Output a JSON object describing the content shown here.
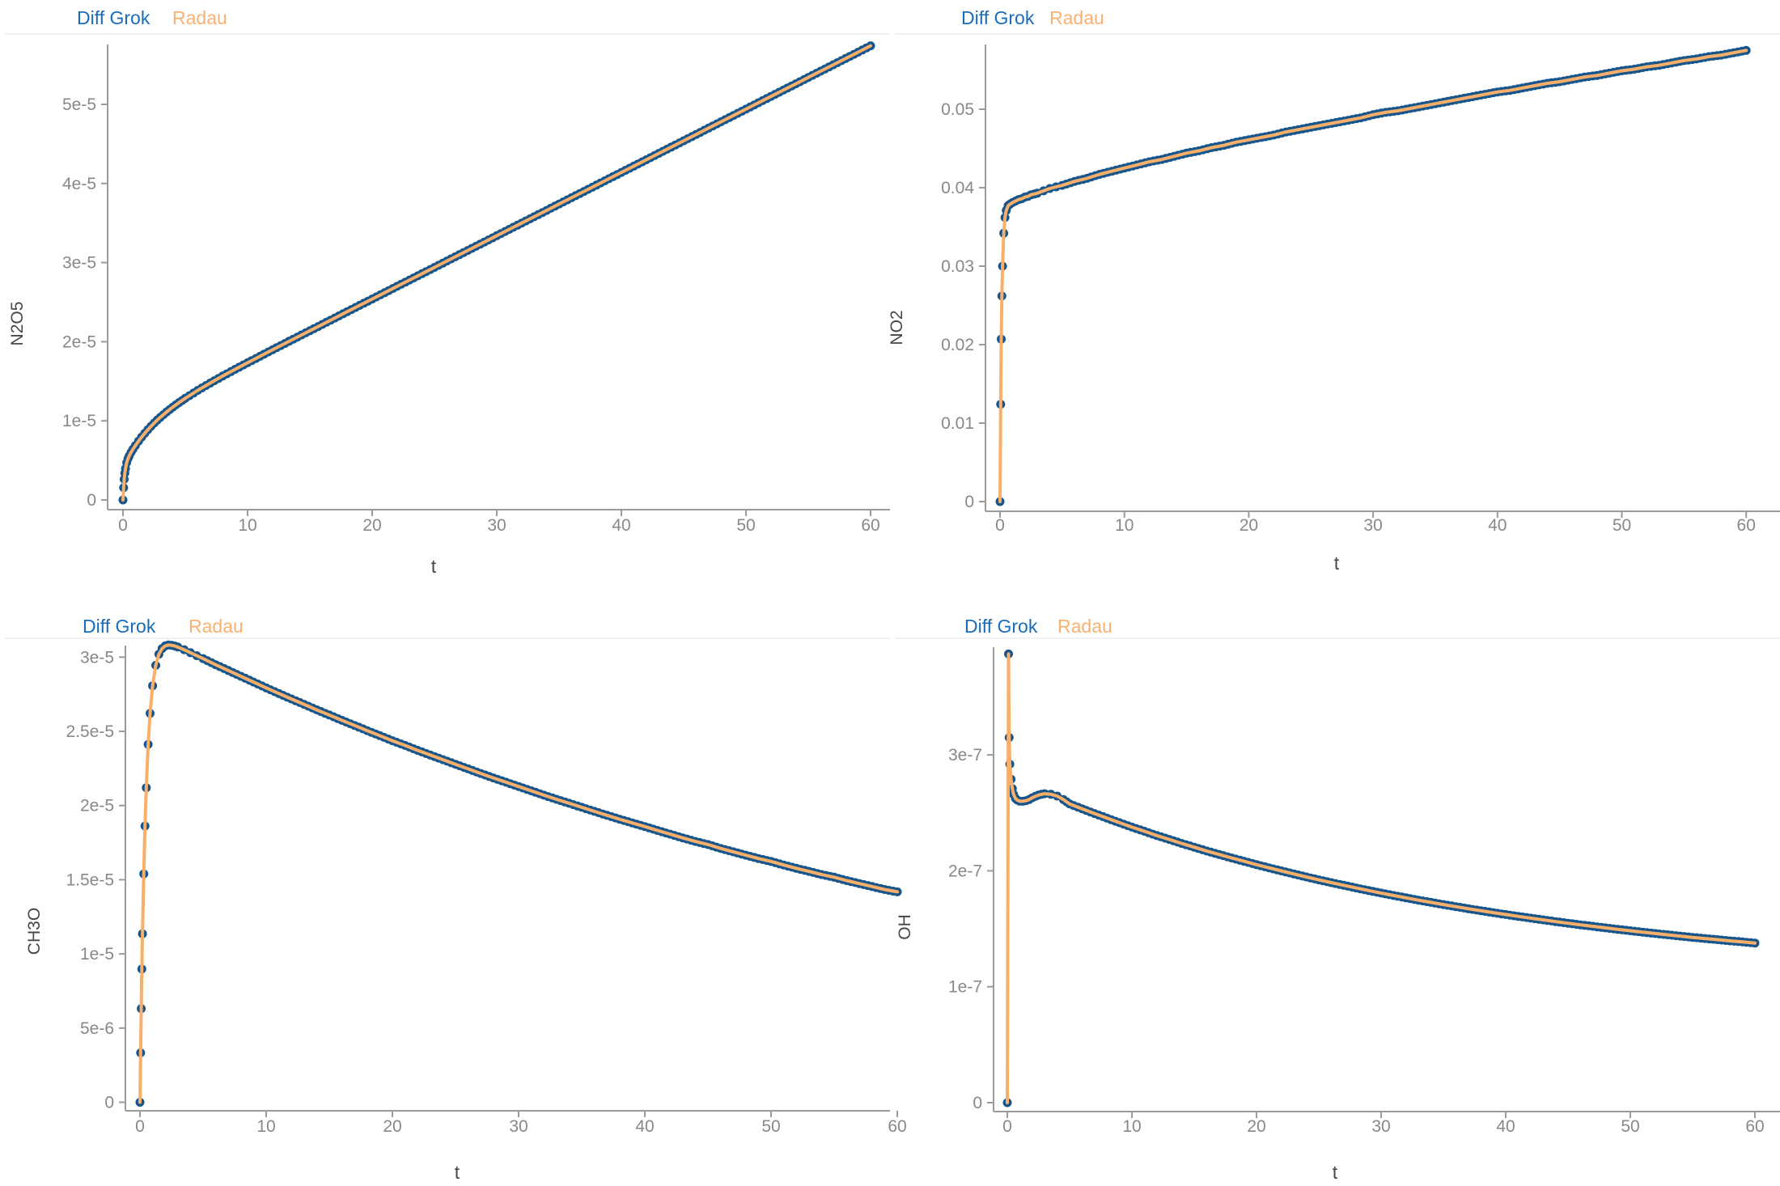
{
  "page": {
    "background": "#ffffff"
  },
  "colors": {
    "marker_blue": "#17568c",
    "line_orange": "#f9ae6a",
    "legend_blue": "#1b6cb7",
    "legend_orange": "#f9b172",
    "axis_line": "#9b9b9b",
    "tick_label": "#888888",
    "axis_title": "#474747",
    "separator": "#ececec"
  },
  "chart_data": [
    {
      "id": "n2o5",
      "type": "line",
      "legend": [
        "Diff Grok",
        "Radau"
      ],
      "xlabel": "t",
      "ylabel": "N2O5",
      "x_range": [
        0,
        60
      ],
      "xticks": [
        0,
        10,
        20,
        30,
        40,
        50,
        60
      ],
      "yticks": [
        {
          "v": 0,
          "label": "0"
        },
        {
          "v": 1e-05,
          "label": "1e-5"
        },
        {
          "v": 2e-05,
          "label": "2e-5"
        },
        {
          "v": 3e-05,
          "label": "3e-5"
        },
        {
          "v": 4e-05,
          "label": "4e-5"
        },
        {
          "v": 5e-05,
          "label": "5e-5"
        }
      ],
      "series_names": [
        "Diff Grok",
        "Radau"
      ],
      "y_unit": 1e-06,
      "t": [
        0,
        0.05,
        0.1,
        0.15,
        0.2,
        0.3,
        0.4,
        0.5,
        0.65,
        0.8,
        1,
        1.25,
        1.5,
        1.75,
        2,
        2.25,
        2.5,
        2.75,
        3,
        3.5,
        4,
        4.5,
        5,
        6,
        7,
        8,
        9,
        10,
        11,
        12,
        13,
        14,
        15,
        16,
        17,
        18,
        19,
        20,
        21,
        22,
        23,
        24,
        25,
        26,
        27,
        28,
        29,
        30,
        31,
        32,
        33,
        34,
        35,
        36,
        37,
        38,
        39,
        40,
        41,
        42,
        43,
        44,
        45,
        46,
        47,
        48,
        49,
        50,
        51,
        52,
        53,
        54,
        55,
        56,
        57,
        58,
        59,
        60
      ],
      "y": [
        0,
        1.54,
        2.62,
        3.39,
        3.96,
        4.72,
        5.21,
        5.57,
        6.02,
        6.41,
        6.88,
        7.44,
        7.95,
        8.43,
        8.89,
        9.31,
        9.71,
        10.09,
        10.45,
        11.12,
        11.74,
        12.31,
        12.85,
        13.85,
        14.78,
        15.66,
        16.51,
        17.34,
        18.16,
        18.98,
        19.79,
        20.59,
        21.39,
        22.19,
        23.0,
        23.8,
        24.6,
        25.4,
        26.2,
        27.0,
        27.8,
        28.6,
        29.4,
        30.2,
        31.0,
        31.8,
        32.6,
        33.4,
        34.2,
        35.0,
        35.8,
        36.6,
        37.4,
        38.2,
        39.0,
        39.8,
        40.6,
        41.4,
        42.2,
        43.0,
        43.8,
        44.6,
        45.4,
        46.2,
        47.0,
        47.8,
        48.6,
        49.4,
        50.2,
        51.0,
        51.8,
        52.6,
        53.4,
        54.2,
        55.0,
        55.8,
        56.6,
        57.4
      ]
    },
    {
      "id": "no2",
      "type": "line",
      "legend": [
        "Diff Grok",
        "Radau"
      ],
      "xlabel": "t",
      "ylabel": "NO2",
      "x_range": [
        0,
        60
      ],
      "xticks": [
        0,
        10,
        20,
        30,
        40,
        50,
        60
      ],
      "yticks": [
        {
          "v": 0,
          "label": "0"
        },
        {
          "v": 0.01,
          "label": "0.01"
        },
        {
          "v": 0.02,
          "label": "0.02"
        },
        {
          "v": 0.03,
          "label": "0.03"
        },
        {
          "v": 0.04,
          "label": "0.04"
        },
        {
          "v": 0.05,
          "label": "0.05"
        }
      ],
      "series_names": [
        "Diff Grok",
        "Radau"
      ],
      "y_unit": 1,
      "t": [
        0,
        0.05,
        0.1,
        0.15,
        0.2,
        0.3,
        0.4,
        0.5,
        0.65,
        0.8,
        1,
        1.25,
        1.5,
        1.75,
        2,
        2.25,
        2.5,
        2.75,
        3,
        3.5,
        4,
        4.5,
        5,
        6,
        7,
        8,
        9,
        10,
        11,
        12,
        13,
        14,
        15,
        16,
        17,
        18,
        19,
        20,
        21,
        22,
        23,
        24,
        25,
        26,
        27,
        28,
        29,
        30,
        31,
        32,
        33,
        34,
        35,
        36,
        37,
        38,
        39,
        40,
        41,
        42,
        43,
        44,
        45,
        46,
        47,
        48,
        49,
        50,
        51,
        52,
        53,
        54,
        55,
        56,
        57,
        58,
        59,
        60
      ],
      "y": [
        0,
        0.0124,
        0.0207,
        0.0262,
        0.03,
        0.0342,
        0.0362,
        0.0371,
        0.0377,
        0.0379,
        0.0381,
        0.0383,
        0.0385,
        0.0386,
        0.0388,
        0.0389,
        0.0391,
        0.0392,
        0.0393,
        0.0396,
        0.0399,
        0.0401,
        0.0403,
        0.0408,
        0.0412,
        0.0417,
        0.0421,
        0.0425,
        0.0429,
        0.0433,
        0.0436,
        0.044,
        0.0444,
        0.0447,
        0.0451,
        0.0454,
        0.0458,
        0.0461,
        0.0464,
        0.0467,
        0.0471,
        0.0474,
        0.0477,
        0.048,
        0.0483,
        0.0486,
        0.0489,
        0.0493,
        0.0496,
        0.0498,
        0.0501,
        0.0504,
        0.0507,
        0.051,
        0.0513,
        0.0516,
        0.0519,
        0.0522,
        0.0524,
        0.0527,
        0.053,
        0.0533,
        0.0535,
        0.0538,
        0.0541,
        0.0543,
        0.0546,
        0.0549,
        0.0551,
        0.0554,
        0.0556,
        0.0559,
        0.0562,
        0.0564,
        0.0567,
        0.0569,
        0.0572,
        0.0575
      ]
    },
    {
      "id": "ch3o",
      "type": "line",
      "legend": [
        "Diff Grok",
        "Radau"
      ],
      "xlabel": "t",
      "ylabel": "CH3O",
      "x_range": [
        0,
        60
      ],
      "xticks": [
        0,
        10,
        20,
        30,
        40,
        50,
        60
      ],
      "yticks": [
        {
          "v": 0,
          "label": "0"
        },
        {
          "v": 5e-06,
          "label": "5e-6"
        },
        {
          "v": 1e-05,
          "label": "1e-5"
        },
        {
          "v": 1.5e-05,
          "label": "1.5e-5"
        },
        {
          "v": 2e-05,
          "label": "2e-5"
        },
        {
          "v": 2.5e-05,
          "label": "2.5e-5"
        },
        {
          "v": 3e-05,
          "label": "3e-5"
        }
      ],
      "series_names": [
        "Diff Grok",
        "Radau"
      ],
      "y_unit": 1e-05,
      "t": [
        0,
        0.05,
        0.1,
        0.15,
        0.2,
        0.3,
        0.4,
        0.5,
        0.65,
        0.8,
        1,
        1.25,
        1.5,
        1.75,
        2,
        2.25,
        2.5,
        2.75,
        3,
        3.5,
        4,
        4.5,
        5,
        6,
        7,
        8,
        9,
        10,
        11,
        12,
        13,
        14,
        15,
        16,
        17,
        18,
        19,
        20,
        21,
        22,
        23,
        24,
        25,
        26,
        27,
        28,
        29,
        30,
        31,
        32,
        33,
        34,
        35,
        36,
        37,
        38,
        39,
        40,
        41,
        42,
        43,
        44,
        45,
        46,
        47,
        48,
        49,
        50,
        51,
        52,
        53,
        54,
        55,
        56,
        57,
        58,
        59,
        60
      ],
      "y": [
        0,
        0.333,
        0.631,
        0.898,
        1.136,
        1.539,
        1.862,
        2.12,
        2.412,
        2.621,
        2.807,
        2.945,
        3.02,
        3.058,
        3.076,
        3.082,
        3.08,
        3.075,
        3.068,
        3.05,
        3.03,
        3.01,
        2.99,
        2.949,
        2.91,
        2.871,
        2.832,
        2.793,
        2.755,
        2.718,
        2.682,
        2.645,
        2.61,
        2.574,
        2.54,
        2.505,
        2.471,
        2.437,
        2.405,
        2.372,
        2.34,
        2.309,
        2.278,
        2.247,
        2.216,
        2.186,
        2.157,
        2.128,
        2.099,
        2.07,
        2.042,
        2.015,
        1.988,
        1.961,
        1.934,
        1.908,
        1.883,
        1.858,
        1.832,
        1.807,
        1.782,
        1.758,
        1.737,
        1.711,
        1.688,
        1.665,
        1.643,
        1.623,
        1.599,
        1.577,
        1.556,
        1.535,
        1.517,
        1.494,
        1.474,
        1.454,
        1.434,
        1.418
      ]
    },
    {
      "id": "oh",
      "type": "line",
      "legend": [
        "Diff Grok",
        "Radau"
      ],
      "xlabel": "t",
      "ylabel": "OH",
      "x_range": [
        0,
        60
      ],
      "xticks": [
        0,
        10,
        20,
        30,
        40,
        50,
        60
      ],
      "yticks": [
        {
          "v": 0,
          "label": "0"
        },
        {
          "v": 1e-07,
          "label": "1e-7"
        },
        {
          "v": 2e-07,
          "label": "2e-7"
        },
        {
          "v": 3e-07,
          "label": "3e-7"
        }
      ],
      "series_names": [
        "Diff Grok",
        "Radau"
      ],
      "y_unit": 1e-07,
      "t": [
        0,
        0.1,
        0.15,
        0.2,
        0.3,
        0.4,
        0.5,
        0.65,
        0.8,
        1,
        1.25,
        1.5,
        1.75,
        2,
        2.25,
        2.5,
        2.75,
        3,
        3.5,
        4,
        4.5,
        5,
        6,
        7,
        8,
        9,
        10,
        11,
        12,
        13,
        14,
        15,
        16,
        17,
        18,
        19,
        20,
        21,
        22,
        23,
        24,
        25,
        26,
        27,
        28,
        29,
        30,
        31,
        32,
        33,
        34,
        35,
        36,
        37,
        38,
        39,
        40,
        41,
        42,
        43,
        44,
        45,
        46,
        47,
        48,
        49,
        50,
        51,
        52,
        53,
        54,
        55,
        56,
        57,
        58,
        59,
        60
      ],
      "y": [
        0,
        3.87,
        3.15,
        2.92,
        2.79,
        2.71,
        2.66,
        2.625,
        2.61,
        2.6,
        2.6,
        2.605,
        2.615,
        2.63,
        2.643,
        2.653,
        2.66,
        2.665,
        2.66,
        2.645,
        2.615,
        2.577,
        2.535,
        2.494,
        2.454,
        2.415,
        2.377,
        2.341,
        2.304,
        2.271,
        2.236,
        2.204,
        2.171,
        2.141,
        2.111,
        2.082,
        2.053,
        2.026,
        1.999,
        1.973,
        1.947,
        1.922,
        1.898,
        1.875,
        1.852,
        1.83,
        1.808,
        1.787,
        1.767,
        1.747,
        1.728,
        1.709,
        1.691,
        1.673,
        1.656,
        1.639,
        1.623,
        1.607,
        1.592,
        1.577,
        1.562,
        1.548,
        1.534,
        1.521,
        1.508,
        1.495,
        1.483,
        1.471,
        1.459,
        1.448,
        1.437,
        1.426,
        1.416,
        1.406,
        1.396,
        1.387,
        1.377
      ]
    }
  ]
}
